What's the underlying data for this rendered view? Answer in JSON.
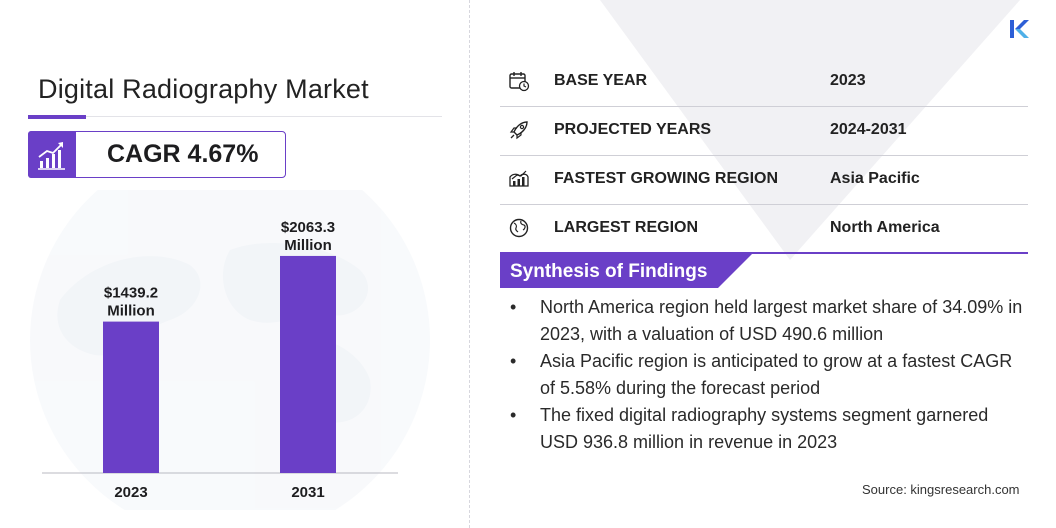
{
  "page": {
    "title": "Digital Radiography Market",
    "cagr": "CAGR 4.67%",
    "source": "Source: kingsresearch.com"
  },
  "chart_data": {
    "type": "bar",
    "categories": [
      "2023",
      "2031"
    ],
    "values": [
      1439.2,
      2063.3
    ],
    "value_labels": [
      "$1439.2",
      "$2063.3"
    ],
    "unit_label": "Million",
    "ylim": [
      0,
      2500
    ],
    "bar_color": "#6a3fc7",
    "grid": false
  },
  "info": [
    {
      "label": "BASE YEAR",
      "value": "2023",
      "icon": "calendar-icon"
    },
    {
      "label": "PROJECTED YEARS",
      "value": "2024-2031",
      "icon": "rocket-icon"
    },
    {
      "label": "FASTEST GROWING REGION",
      "value": "Asia Pacific",
      "icon": "region-growth-icon"
    },
    {
      "label": "LARGEST REGION",
      "value": "North America",
      "icon": "globe-icon"
    }
  ],
  "synthesis": {
    "title": "Synthesis of Findings",
    "items": [
      "North America region held largest market share of 34.09% in 2023, with a valuation of USD 490.6 million",
      "Asia Pacific region is anticipated to grow at a fastest CAGR of 5.58% during the forecast period",
      "The fixed digital radiography systems segment garnered USD 936.8 million in revenue in 2023"
    ]
  },
  "colors": {
    "accent": "#6a3fc7",
    "rule": "#cfcfd6"
  }
}
